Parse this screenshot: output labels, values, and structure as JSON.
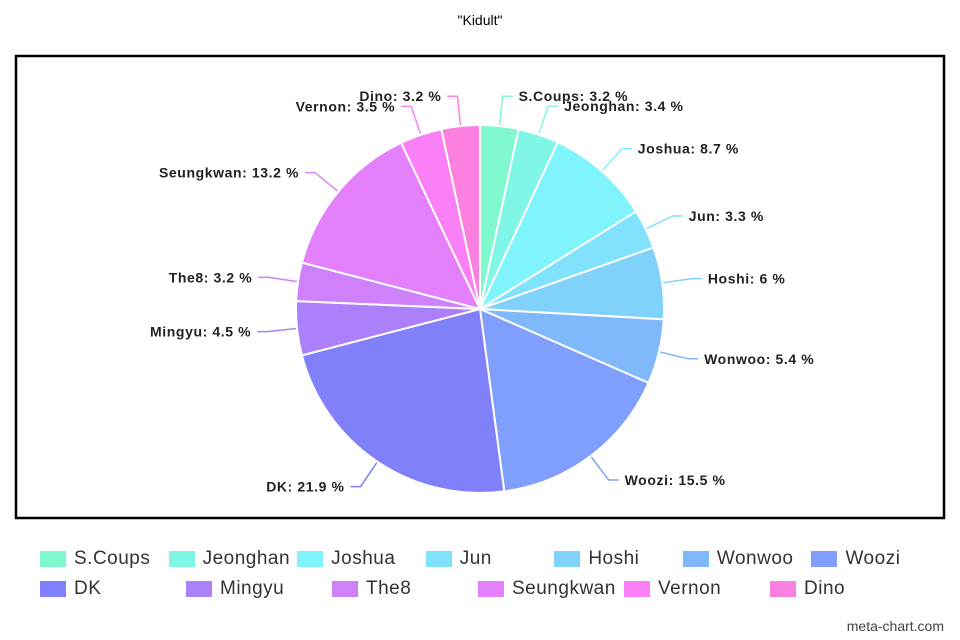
{
  "chart_data": {
    "type": "pie",
    "title": "\"Kidult\"",
    "slices": [
      {
        "label": "S.Coups",
        "value": 3.2,
        "value_label": "3.2 %",
        "color": "#80f9cf"
      },
      {
        "label": "Jeonghan",
        "value": 3.4,
        "value_label": "3.4 %",
        "color": "#80f7e6"
      },
      {
        "label": "Joshua",
        "value": 8.7,
        "value_label": "8.7 %",
        "color": "#80f4fc"
      },
      {
        "label": "Jun",
        "value": 3.3,
        "value_label": "3.3 %",
        "color": "#80e2fc"
      },
      {
        "label": "Hoshi",
        "value": 6,
        "value_label": "6 %",
        "color": "#80d2fb"
      },
      {
        "label": "Wonwoo",
        "value": 5.4,
        "value_label": "5.4 %",
        "color": "#80b9fb"
      },
      {
        "label": "Woozi",
        "value": 15.5,
        "value_label": "15.5 %",
        "color": "#809efc"
      },
      {
        "label": "DK",
        "value": 21.9,
        "value_label": "21.9 %",
        "color": "#8080fb"
      },
      {
        "label": "Mingyu",
        "value": 4.5,
        "value_label": "4.5 %",
        "color": "#ad80fb"
      },
      {
        "label": "The8",
        "value": 3.2,
        "value_label": "3.2 %",
        "color": "#cf80fb"
      },
      {
        "label": "Seungkwan",
        "value": 13.2,
        "value_label": "13.2 %",
        "color": "#e480fb"
      },
      {
        "label": "Vernon",
        "value": 3.5,
        "value_label": "3.5 %",
        "color": "#fb80f7"
      },
      {
        "label": "Dino",
        "value": 3.2,
        "value_label": "3.2 %",
        "color": "#fb80df"
      }
    ],
    "legend_position": "bottom"
  },
  "watermark": "meta-chart.com"
}
